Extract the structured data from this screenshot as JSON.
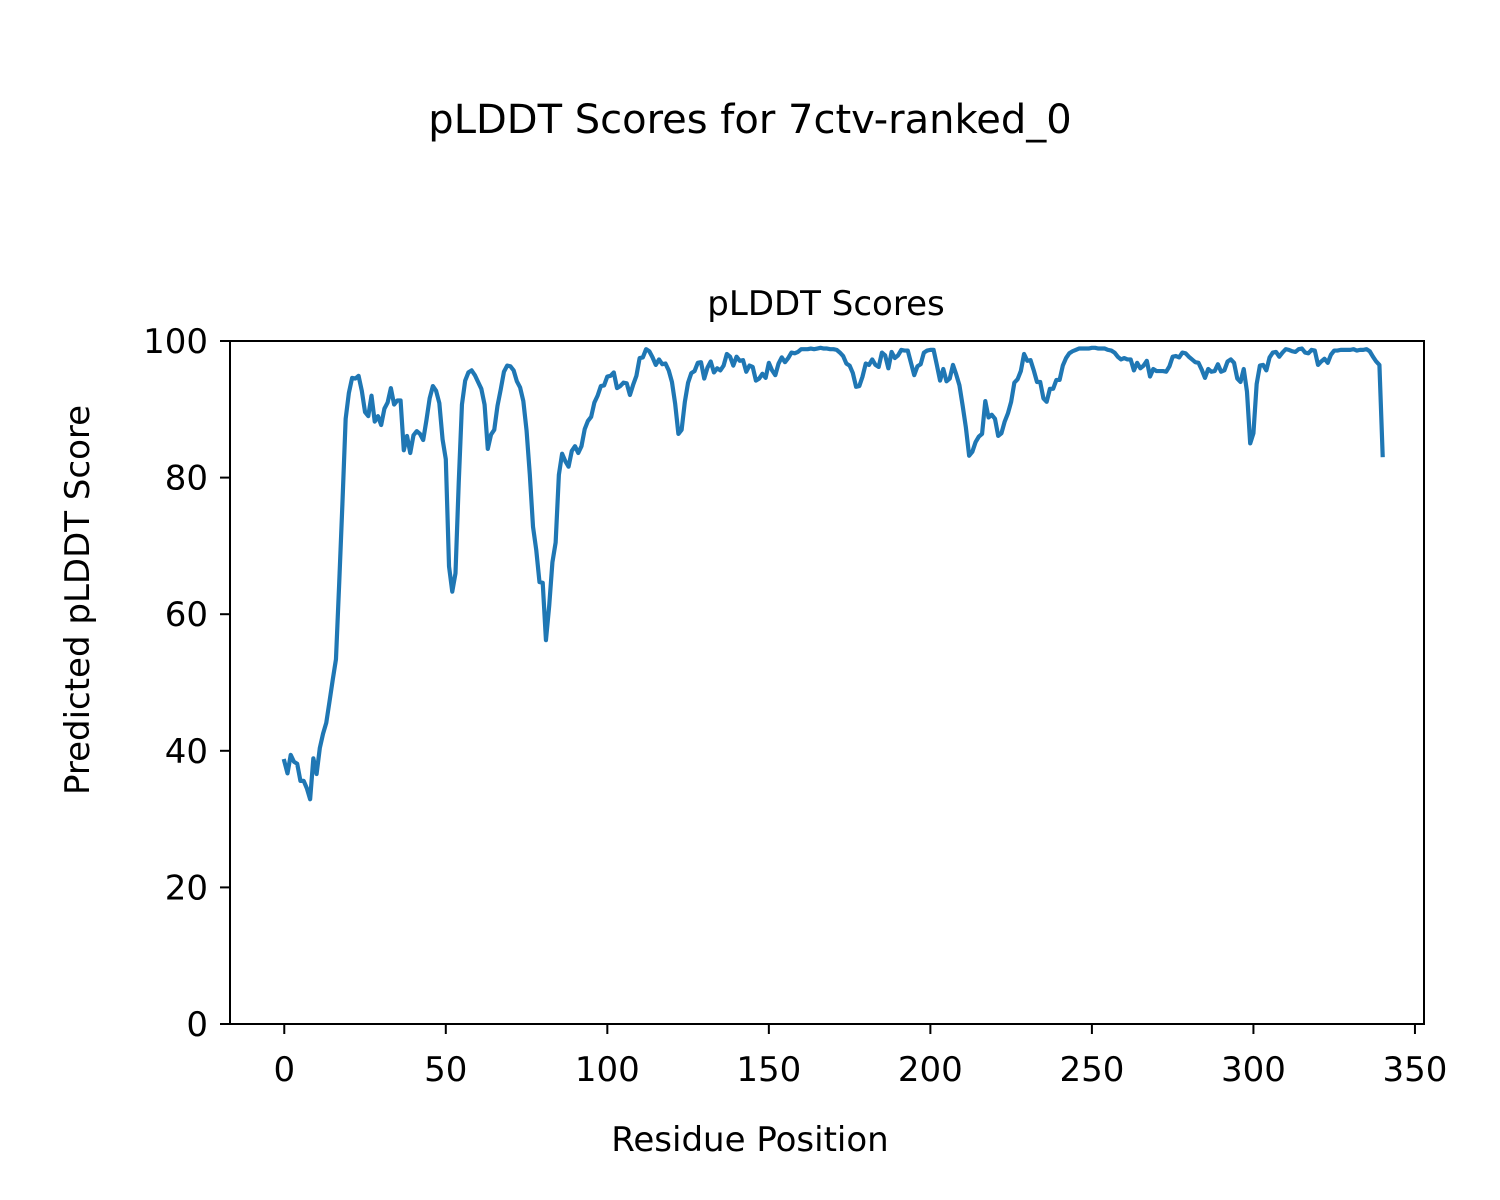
{
  "figure_title": "pLDDT Scores for 7ctv-ranked_0",
  "chart_data": {
    "type": "line",
    "title": "pLDDT Scores",
    "xlabel": "Residue Position",
    "ylabel": "Predicted pLDDT Score",
    "xlim": [
      -16.8,
      352.8
    ],
    "ylim": [
      0,
      100
    ],
    "xticks": [
      0,
      50,
      100,
      150,
      200,
      250,
      300,
      350
    ],
    "yticks": [
      0,
      20,
      40,
      60,
      80,
      100
    ],
    "line_color": "#1f77b4",
    "grid": false,
    "legend": "none",
    "x_start": 0,
    "x_step": 1,
    "values": [
      38.5,
      36.7,
      39.4,
      38.4,
      38.1,
      35.6,
      35.6,
      34.5,
      32.9,
      38.9,
      36.6,
      40.4,
      42.5,
      44.1,
      47.2,
      50.4,
      53.4,
      64.5,
      76.2,
      88.6,
      92.4,
      94.6,
      94.5,
      94.9,
      92.7,
      89.6,
      89.0,
      92.0,
      88.2,
      89.0,
      87.7,
      90.1,
      91.0,
      93.1,
      90.7,
      91.3,
      91.3,
      84.0,
      86.1,
      83.6,
      86.2,
      86.8,
      86.4,
      85.5,
      88.4,
      91.6,
      93.4,
      92.7,
      90.9,
      85.6,
      82.7,
      67.0,
      63.3,
      66.0,
      79.2,
      90.7,
      94.2,
      95.4,
      95.7,
      95.0,
      94.0,
      93.0,
      90.7,
      84.2,
      86.3,
      87.0,
      90.5,
      92.9,
      95.5,
      96.4,
      96.3,
      95.7,
      94.1,
      93.2,
      91.2,
      86.9,
      80.5,
      72.8,
      69.4,
      64.7,
      64.6,
      56.2,
      61.2,
      67.6,
      70.5,
      80.4,
      83.5,
      82.4,
      81.6,
      83.9,
      84.6,
      83.6,
      84.6,
      87.1,
      88.3,
      88.9,
      91.0,
      92.0,
      93.4,
      93.5,
      94.8,
      94.9,
      95.4,
      93.1,
      93.4,
      93.9,
      93.8,
      92.1,
      93.6,
      94.9,
      97.5,
      97.6,
      98.8,
      98.5,
      97.6,
      96.5,
      97.3,
      96.6,
      96.7,
      95.7,
      94.0,
      90.8,
      86.4,
      87.0,
      91.1,
      93.9,
      95.3,
      95.6,
      96.8,
      96.9,
      94.5,
      96.1,
      97.0,
      95.4,
      96.0,
      95.7,
      96.4,
      98.1,
      97.7,
      96.4,
      97.7,
      97.1,
      97.2,
      95.5,
      96.4,
      96.2,
      94.2,
      94.5,
      95.2,
      94.6,
      96.8,
      95.7,
      95.0,
      96.7,
      97.6,
      96.9,
      97.5,
      98.3,
      98.2,
      98.4,
      98.8,
      98.8,
      98.8,
      98.9,
      98.8,
      98.9,
      99.0,
      98.9,
      98.9,
      98.8,
      98.8,
      98.7,
      98.3,
      97.8,
      96.7,
      96.4,
      95.3,
      93.3,
      93.4,
      94.8,
      96.7,
      96.5,
      97.3,
      96.5,
      96.2,
      98.3,
      97.9,
      96.0,
      98.4,
      97.5,
      97.9,
      98.7,
      98.6,
      98.6,
      96.8,
      95.0,
      96.3,
      96.6,
      98.3,
      98.6,
      98.7,
      98.7,
      96.5,
      94.2,
      95.9,
      94.1,
      94.5,
      96.5,
      95.1,
      93.5,
      90.5,
      87.3,
      83.2,
      83.8,
      85.2,
      86.0,
      86.4,
      91.2,
      88.8,
      89.2,
      88.6,
      86.1,
      86.5,
      88.2,
      89.4,
      91.1,
      93.9,
      94.4,
      95.6,
      98.1,
      97.1,
      97.2,
      95.7,
      94.0,
      94.0,
      91.6,
      91.1,
      93.0,
      93.0,
      94.3,
      94.3,
      96.4,
      97.5,
      98.2,
      98.5,
      98.7,
      98.9,
      98.9,
      98.9,
      98.9,
      99.0,
      99.0,
      98.9,
      98.9,
      98.9,
      98.7,
      98.6,
      98.3,
      97.7,
      97.3,
      97.5,
      97.3,
      97.3,
      95.7,
      96.8,
      96.0,
      96.4,
      97.1,
      94.8,
      95.9,
      95.6,
      95.6,
      95.6,
      95.5,
      96.3,
      97.7,
      97.8,
      97.6,
      98.3,
      98.2,
      97.7,
      97.3,
      96.9,
      96.8,
      95.8,
      94.6,
      95.9,
      95.5,
      95.6,
      96.6,
      95.5,
      95.7,
      97.0,
      97.3,
      96.8,
      94.5,
      94.0,
      95.9,
      92.6,
      85.0,
      86.5,
      93.7,
      96.4,
      96.5,
      95.7,
      97.6,
      98.3,
      98.4,
      97.7,
      98.3,
      98.8,
      98.7,
      98.5,
      98.4,
      98.8,
      98.9,
      98.3,
      98.2,
      98.7,
      98.6,
      96.5,
      97.0,
      97.4,
      96.8,
      98.0,
      98.6,
      98.6,
      98.7,
      98.7,
      98.7,
      98.7,
      98.8,
      98.6,
      98.7,
      98.7,
      98.8,
      98.5,
      97.7,
      97.0,
      96.5,
      83.3
    ]
  }
}
